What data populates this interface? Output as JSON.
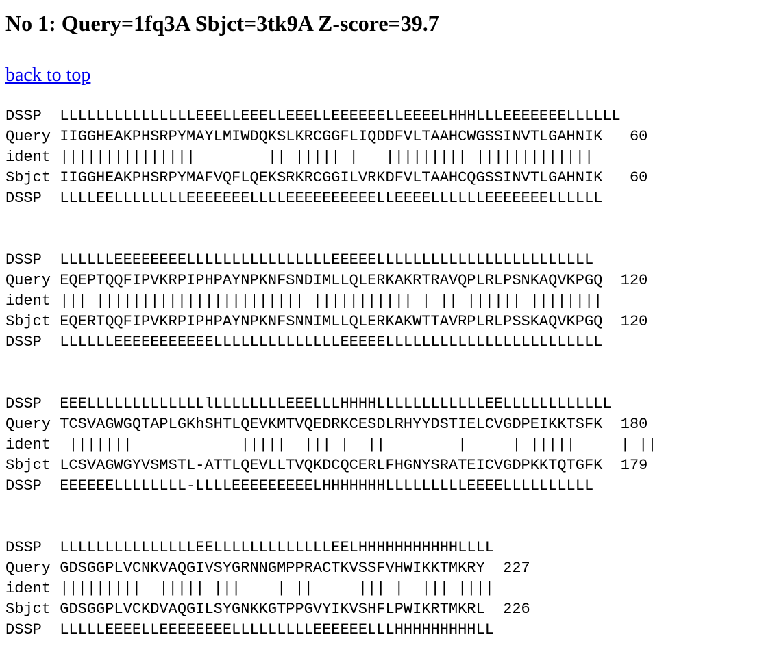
{
  "heading": "No 1: Query=1fq3A Sbjct=3tk9A Z-score=39.7",
  "back_link": "back to top",
  "blocks": [
    {
      "dssp_query": "DSSP  LLLLLLLLLLLLLLLEEELLEEELLEEELLEEEEEELLEEEELHHHLLLEEEEEEELLLLLL",
      "query": "Query IIGGHEAKPHSRPYMAYLMIWDQKSLKRCGGFLIQDDFVLTAAHCWGSSINVTLGAHNIK   60",
      "ident": "ident |||||||||||||||        || ||||| |   ||||||||| |||||||||||||",
      "sbjct": "Sbjct IIGGHEAKPHSRPYMAFVQFLQEKSRKRCGGILVRKDFVLTAAHCQGSSINVTLGAHNIK   60",
      "dssp_sbjct": "DSSP  LLLLEELLLLLLLLEEEEEEELLLLEEEEEEEEEELLEEEELLLLLLEEEEEEELLLLLL"
    },
    {
      "dssp_query": "DSSP  LLLLLLEEEEEEEELLLLLLLLLLLLLLLLEEEEELLLLLLLLLLLLLLLLLLLLLLLL",
      "query": "Query EQEPTQQFIPVKRPIPHPAYNPKNFSNDIMLLQLERKAKRTRAVQPLRLPSNKAQVKPGQ  120",
      "ident": "ident ||| ||||||||||||||||||||||| ||||||||||| | || |||||| ||||||||",
      "sbjct": "Sbjct EQERTQQFIPVKRPIPHPAYNPKNFSNNIMLLQLERKAKWTTAVRPLRLPSSKAQVKPGQ  120",
      "dssp_sbjct": "DSSP  LLLLLLEEEEEEEEEEELLLLLLLLLLLLLLEEEEELLLLLLLLLLLLLLLLLLLLLLLL"
    },
    {
      "dssp_query": "DSSP  EEELLLLLLLLLLLLLlLLLLLLLLEEELLLHHHHLLLLLLLLLLLLEELLLLLLLLLLLL",
      "query": "Query TCSVAGWGQTAPLGKhSHTLQEVKMTVQEDRKCESDLRHYYDSTIELCVGDPEIKKTSFK  180",
      "ident": "ident  |||||||            |||||  ||| |  ||        |     | |||||     | ||",
      "sbjct": "Sbjct LCSVAGWGYVSMSTL-ATTLQEVLLTVQKDCQCERLFHGNYSRATEICVGDPKKTQTGFK  179",
      "dssp_sbjct": "DSSP  EEEEEELLLLLLLL-LLLLEEEEEEEEELHHHHHHHLLLLLLLLLEEEELLLLLLLLLL"
    },
    {
      "dssp_query": "DSSP  LLLLLLLLLLLLLLLEELLLLLLLLLLLLLEELHHHHHHHHHHHLLLL",
      "query": "Query GDSGGPLVCNKVAQGIVSYGRNNGMPPRACTKVSSFVHWIKKTMKRY  227",
      "ident": "ident |||||||||  ||||| |||    | ||     ||| |  ||| ||||",
      "sbjct": "Sbjct GDSGGPLVCKDVAQGILSYGNKKGTPPGVYIKVSHFLPWIKRTMKRL  226",
      "dssp_sbjct": "DSSP  LLLLLEEEELLEEEEEEEELLLLLLLLLEEEEEELLLHHHHHHHHHLL"
    }
  ]
}
